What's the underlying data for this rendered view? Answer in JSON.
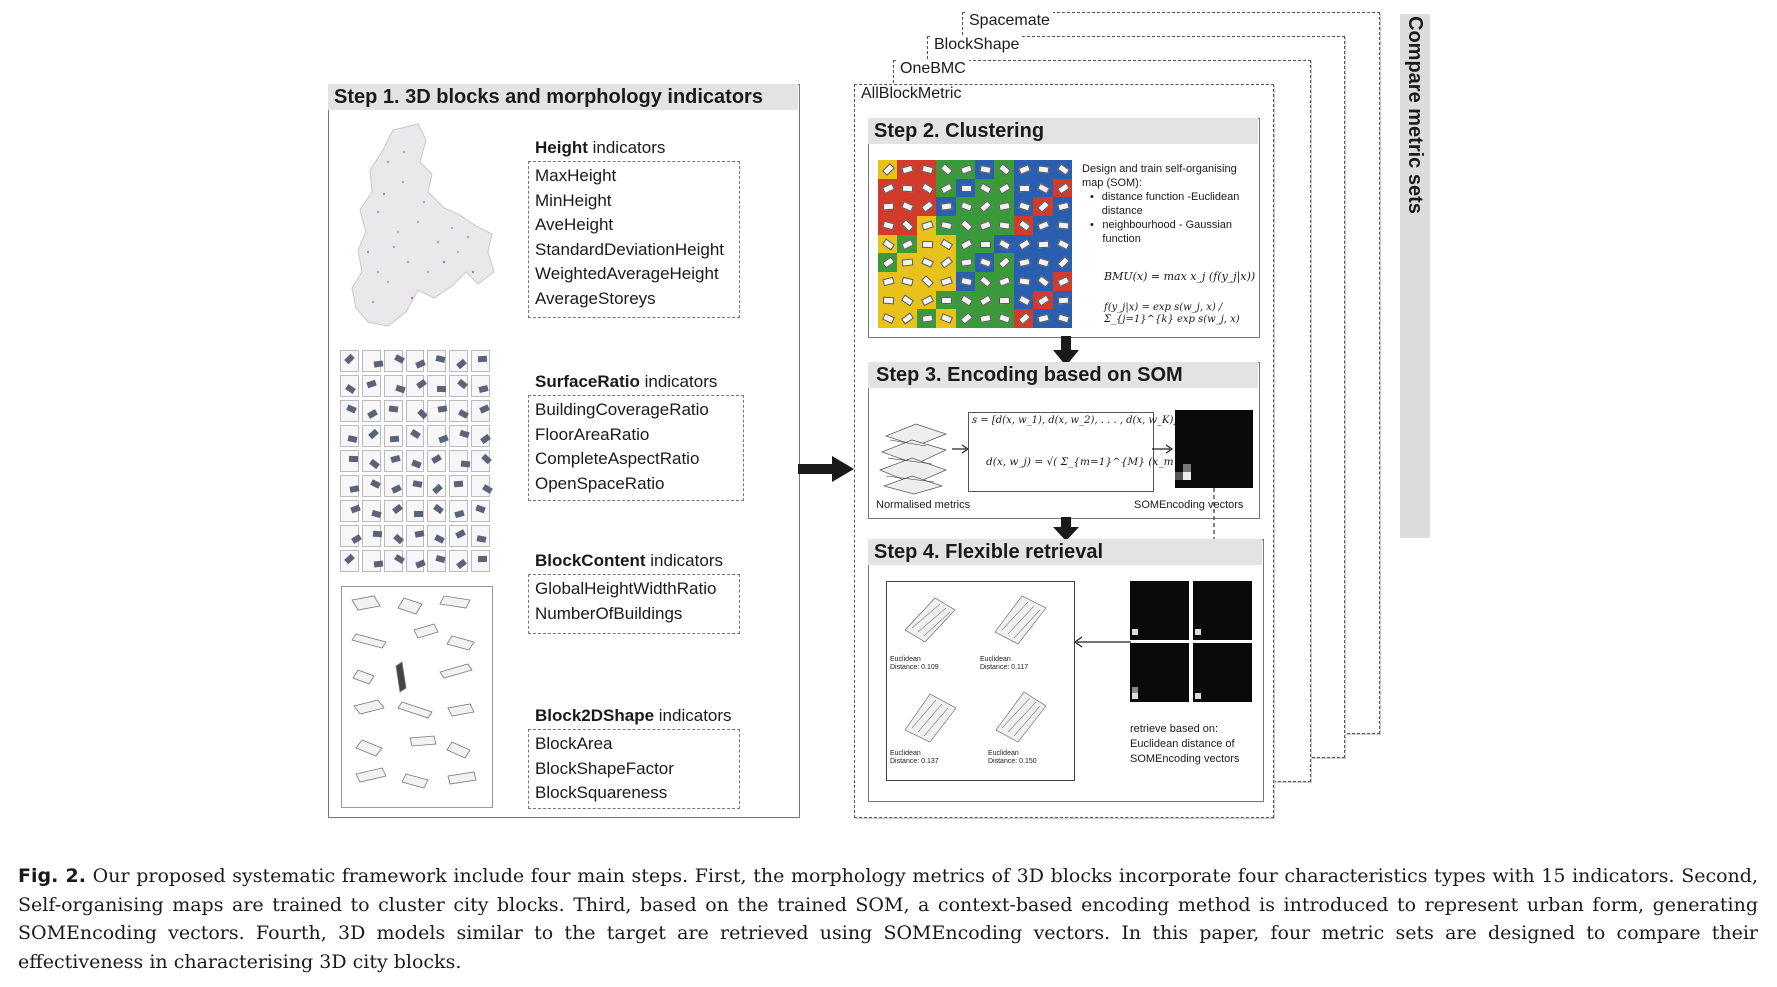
{
  "metric_sets": [
    "Spacemate",
    "BlockShape",
    "OneBMC",
    "AllBlockMetric"
  ],
  "compare_label": "Compare metric sets",
  "step1": {
    "title": "Step 1. 3D blocks and morphology indicators",
    "groups": [
      {
        "name": "Height",
        "suffix": " indicators",
        "items": [
          "MaxHeight",
          "MinHeight",
          "AveHeight",
          "StandardDeviationHeight",
          "WeightedAverageHeight",
          "AverageStoreys"
        ]
      },
      {
        "name": "SurfaceRatio",
        "suffix": " indicators",
        "items": [
          "BuildingCoverageRatio",
          "FloorAreaRatio",
          "CompleteAspectRatio",
          "OpenSpaceRatio"
        ]
      },
      {
        "name": "BlockContent",
        "suffix": " indicators",
        "items": [
          "GlobalHeightWidthRatio",
          "NumberOfBuildings"
        ]
      },
      {
        "name": "Block2DShape",
        "suffix": " indicators",
        "items": [
          "BlockArea",
          "BlockShapeFactor",
          "BlockSquareness"
        ]
      }
    ]
  },
  "step2": {
    "title": "Step 2. Clustering",
    "desc_intro": "Design and train self-organising map (SOM):",
    "bullets": [
      "distance function -Euclidean distance",
      "neighbourhood - Gaussian function"
    ],
    "formula_bmu": "BMU(x) = max x_j (f(y_j|x))",
    "formula_f": "f(y_j|x) = exp s(w_j, x) / Σ_{j=1}^{k} exp s(w_j, x)"
  },
  "step3": {
    "title": "Step 3. Encoding based on SOM",
    "formula_s": "s = [d(x, w_1), d(x, w_2), . . . , d(x, w_K)]",
    "formula_d": "d(x, w_j) = √( Σ_{m=1}^{M} (x_m − w_jm)² )",
    "label_left": "Normalised metrics",
    "label_right": "SOMEncoding vectors"
  },
  "step4": {
    "title": "Step 4. Flexible retrieval",
    "results": [
      {
        "label": "Euclidean",
        "distance": "Distance: 0.109"
      },
      {
        "label": "Euclidean",
        "distance": "Distance: 0.117"
      },
      {
        "label": "Euclidean",
        "distance": "Distance: 0.137"
      },
      {
        "label": "Euclidean",
        "distance": "Distance: 0.150"
      }
    ],
    "retrieve_text": [
      "retrieve based on:",
      "Euclidean distance of",
      "SOMEncoding vectors"
    ]
  },
  "caption": {
    "lead": "Fig. 2.",
    "text": " Our proposed systematic framework include four main steps. First, the morphology metrics of 3D blocks incorporate four characteristics types with 15 indicators. Second, Self-organising maps are trained to cluster city blocks. Third, based on the trained SOM, a context-based encoding method is introduced to represent urban form, generating SOMEncoding vectors. Fourth, 3D models similar to the target are retrieved using SOMEncoding vectors. In this paper, four metric sets are designed to compare their effectiveness in characterising 3D city blocks."
  },
  "colors": {
    "som_green": "#3a9a3a",
    "som_red": "#d23a2a",
    "som_yellow": "#e8c21a",
    "som_blue": "#2a5fb0",
    "step_bar": "#e3e3e3"
  }
}
